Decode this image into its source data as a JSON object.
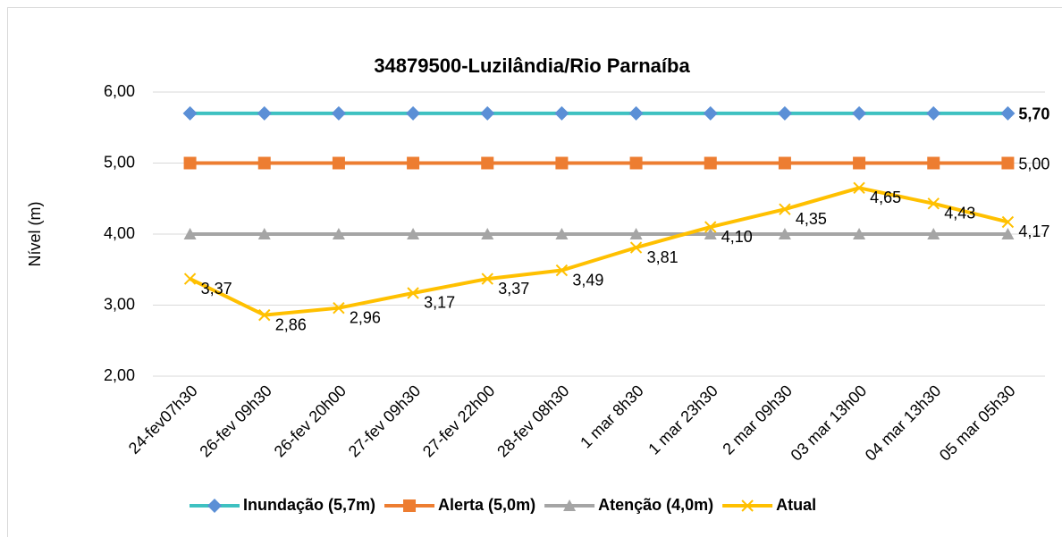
{
  "chart_data": {
    "type": "line",
    "title": "34879500-Luzilândia/Rio Parnaíba",
    "y_label": "Nível  (m)",
    "categories": [
      "24-fev07h30",
      "26-fev 09h30",
      "26-fev 20h00",
      "27-fev 09h30",
      "27-fev 22h00",
      "28-fev 08h30",
      "1 mar 8h30",
      "1 mar 23h30",
      "2 mar 09h30",
      "03 mar 13h00",
      "04 mar 13h30",
      "05 mar 05h30"
    ],
    "series": [
      {
        "name": "Inundação (5,7m)",
        "color": "#3ec1c1",
        "marker_color": "#5b8fd6",
        "marker": "diamond",
        "label_color": "#4472c4",
        "label_bold": true,
        "values": [
          5.7,
          5.7,
          5.7,
          5.7,
          5.7,
          5.7,
          5.7,
          5.7,
          5.7,
          5.7,
          5.7,
          5.7
        ],
        "value_labels": [
          null,
          null,
          null,
          null,
          null,
          null,
          null,
          null,
          null,
          null,
          null,
          "5,70"
        ]
      },
      {
        "name": "Alerta (5,0m)",
        "color": "#ed7d31",
        "marker_color": "#ed7d31",
        "marker": "square",
        "label_color": "#000000",
        "label_bold": false,
        "values": [
          5.0,
          5.0,
          5.0,
          5.0,
          5.0,
          5.0,
          5.0,
          5.0,
          5.0,
          5.0,
          5.0,
          5.0
        ],
        "value_labels": [
          null,
          null,
          null,
          null,
          null,
          null,
          null,
          null,
          null,
          null,
          null,
          "5,00"
        ]
      },
      {
        "name": "Atenção (4,0m)",
        "color": "#a5a5a5",
        "marker_color": "#a5a5a5",
        "marker": "triangle",
        "values": [
          4.0,
          4.0,
          4.0,
          4.0,
          4.0,
          4.0,
          4.0,
          4.0,
          4.0,
          4.0,
          4.0,
          4.0
        ]
      },
      {
        "name": "Atual",
        "color": "#ffc000",
        "marker_color": "#ffc000",
        "marker": "x",
        "label_color": "#000000",
        "label_bold": false,
        "values": [
          3.37,
          2.86,
          2.96,
          3.17,
          3.37,
          3.49,
          3.81,
          4.1,
          4.35,
          4.65,
          4.43,
          4.17
        ],
        "value_labels": [
          "3,37",
          "2,86",
          "2,96",
          "3,17",
          "3,37",
          "3,49",
          "3,81",
          "4,10",
          "4,35",
          "4,65",
          "4,43",
          "4,17"
        ]
      }
    ],
    "ylim": [
      2,
      6
    ],
    "yticks": [
      {
        "value": 2,
        "label": "2,00"
      },
      {
        "value": 3,
        "label": "3,00"
      },
      {
        "value": 4,
        "label": "4,00"
      },
      {
        "value": 5,
        "label": "5,00"
      },
      {
        "value": 6,
        "label": "6,00"
      }
    ],
    "grid": true,
    "legend": "bottom"
  }
}
